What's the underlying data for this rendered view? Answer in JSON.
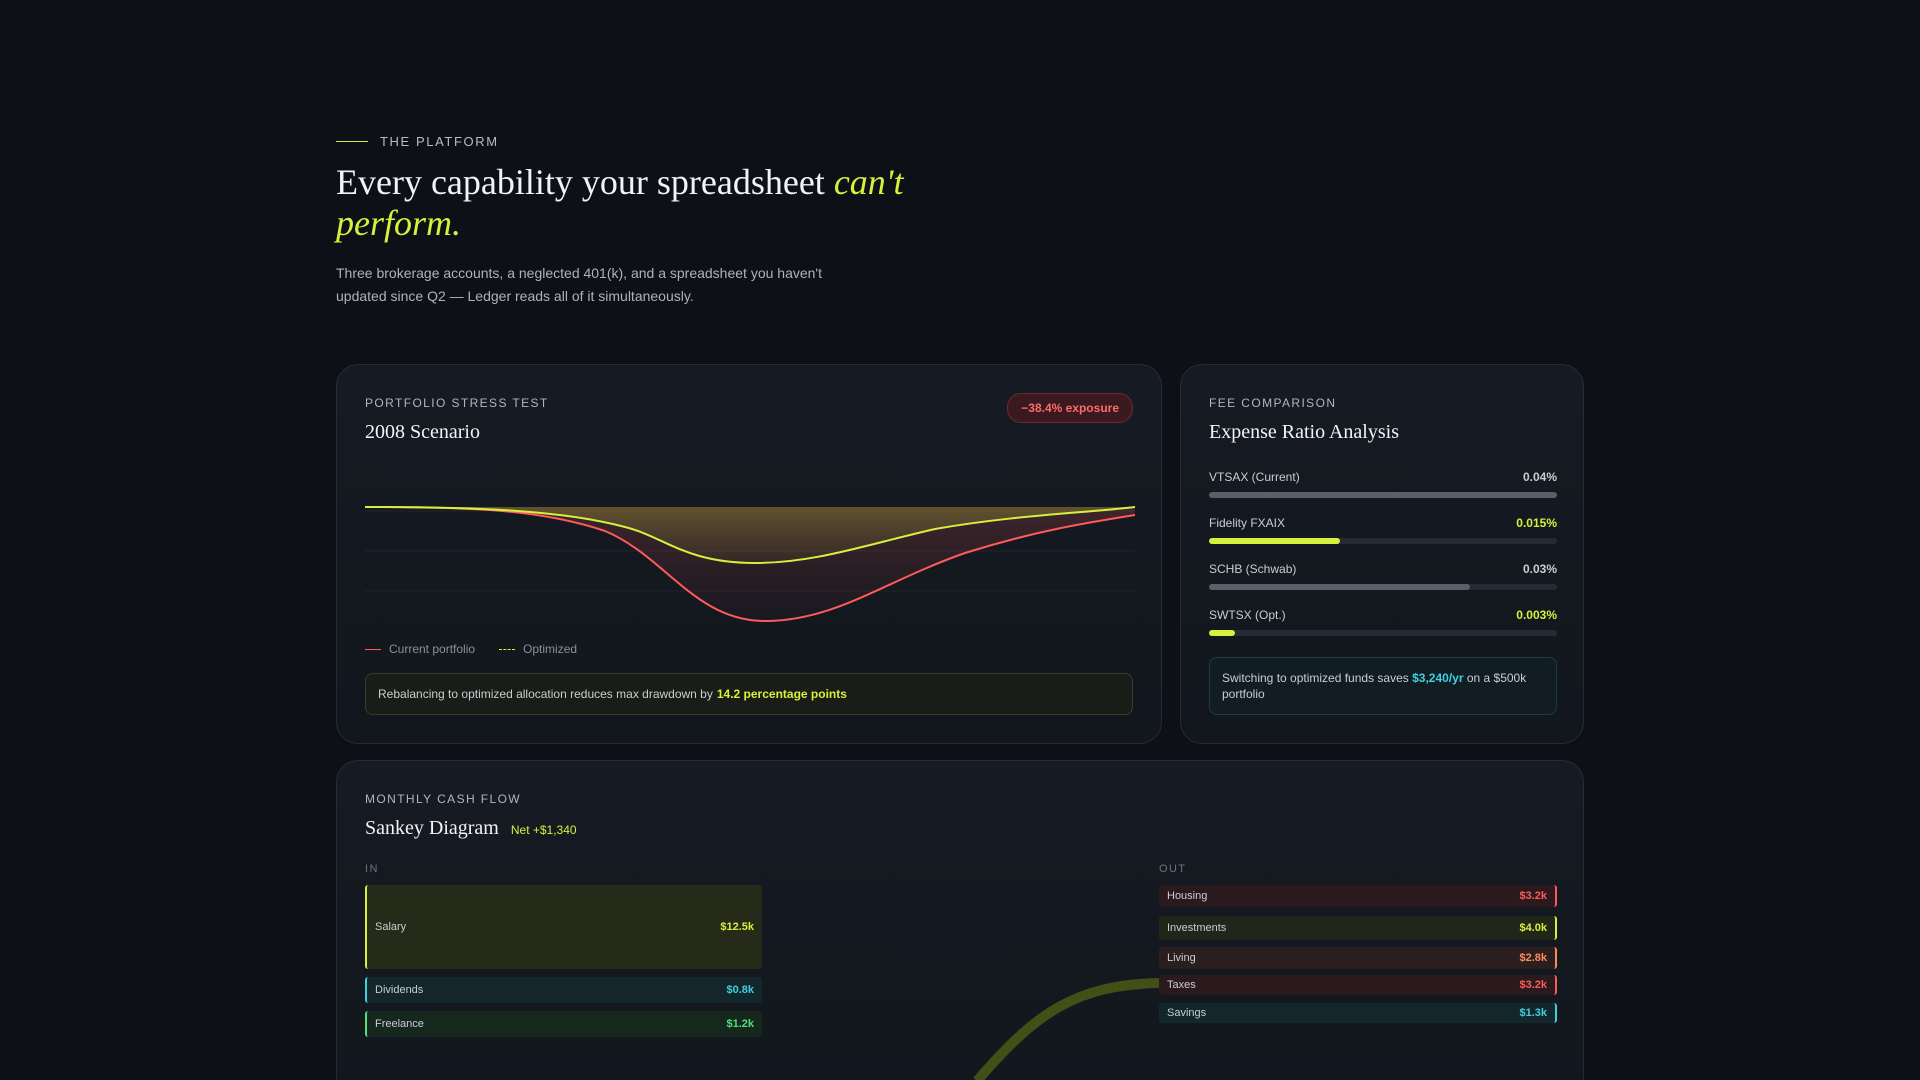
{
  "hero": {
    "eyebrow": "THE PLATFORM",
    "headline_main": "Every capability your spreadsheet ",
    "headline_accent": "can't perform.",
    "lede": "Three brokerage accounts, a neglected 401(k), and a spreadsheet you haven't updated since Q2 — Ledger reads all of it simultaneously."
  },
  "stress_test": {
    "label": "PORTFOLIO STRESS TEST",
    "title": "2008 Scenario",
    "badge": "−38.4% exposure",
    "legend_current": "Current portfolio",
    "legend_optimized": "Optimized",
    "note_text": "Rebalancing to optimized allocation reduces max drawdown by",
    "note_highlight": "14.2 percentage points"
  },
  "fee_comparison": {
    "label": "FEE COMPARISON",
    "title": "Expense Ratio Analysis",
    "funds": [
      {
        "name": "VTSAX (Current)",
        "value": "0.04%",
        "fraction": 1.0,
        "optimized": false
      },
      {
        "name": "Fidelity FXAIX",
        "value": "0.015%",
        "fraction": 0.375,
        "optimized": true
      },
      {
        "name": "SCHB (Schwab)",
        "value": "0.03%",
        "fraction": 0.75,
        "optimized": false
      },
      {
        "name": "SWTSX (Opt.)",
        "value": "0.003%",
        "fraction": 0.075,
        "optimized": true
      }
    ],
    "savings_prefix": "Switching to optimized funds saves",
    "savings_amount": "$3,240/yr",
    "savings_suffix": "on a $500k portfolio"
  },
  "cash_flow": {
    "label": "MONTHLY CASH FLOW",
    "title": "Sankey Diagram",
    "net": "Net +$1,340",
    "in_label": "IN",
    "out_label": "OUT",
    "inflows": [
      {
        "name": "Salary",
        "value": "$12.5k",
        "color": "#d7f03c"
      },
      {
        "name": "Dividends",
        "value": "$0.8k",
        "color": "#3fd0e0"
      },
      {
        "name": "Freelance",
        "value": "$1.2k",
        "color": "#4fe07a"
      }
    ],
    "outflows": [
      {
        "name": "Housing",
        "value": "$3.2k",
        "color": "#ff5a5a"
      },
      {
        "name": "Investments",
        "value": "$4.0k",
        "color": "#d7f03c"
      },
      {
        "name": "Living",
        "value": "$2.8k",
        "color": "#ff8a5a"
      },
      {
        "name": "Taxes",
        "value": "$3.2k",
        "color": "#ff5a5a"
      },
      {
        "name": "Savings",
        "value": "$1.3k",
        "color": "#3fd0e0"
      }
    ]
  }
}
